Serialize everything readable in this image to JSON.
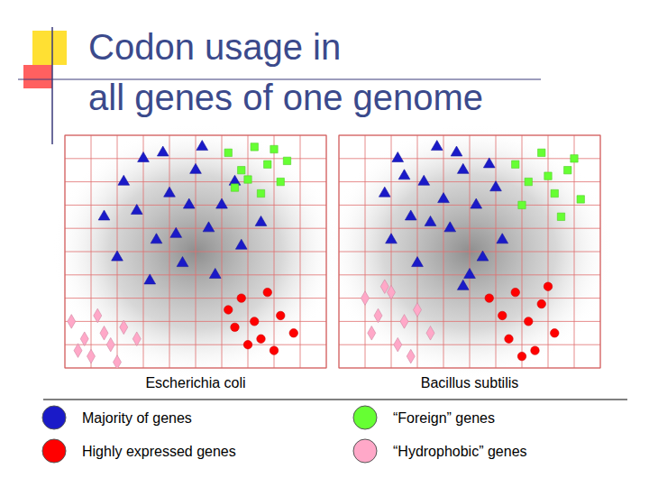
{
  "title": [
    "Codon usage in",
    "all genes of one genome"
  ],
  "chart_data": [
    {
      "type": "scatter",
      "title": "Escherichia coli",
      "xlim": [
        -1,
        1
      ],
      "ylim": [
        -1,
        1
      ],
      "xticks": [
        -1,
        -0.8,
        -0.6,
        -0.4,
        -0.2,
        0,
        0.2,
        0.4,
        0.6,
        0.8,
        1
      ],
      "yticks": [
        -1,
        -0.8,
        -0.6,
        -0.4,
        -0.2,
        0,
        0.2,
        0.4,
        0.6,
        0.8,
        1
      ],
      "grid": true,
      "tick_labels": false,
      "series": [
        {
          "name": "Majority of genes",
          "color": "#1a1ac8",
          "marker": "triangle",
          "x": [
            -0.7,
            -0.55,
            -0.4,
            -0.3,
            -0.2,
            -0.1,
            0,
            0.1,
            0.2,
            0.35,
            0.5,
            -0.6,
            -0.45,
            -0.25,
            -0.05,
            0.15,
            0.3,
            -0.35,
            0.05,
            -0.15
          ],
          "values": [
            0.3,
            0.6,
            0.8,
            0.1,
            0.5,
            -0.1,
            0.7,
            0.2,
            0.4,
            0.05,
            0.25,
            -0.05,
            0.35,
            0.85,
            0.4,
            -0.2,
            0.6,
            -0.25,
            0.9,
            0.15
          ]
        },
        {
          "name": "“Foreign” genes",
          "color": "#66ff33",
          "marker": "square",
          "x": [
            0.25,
            0.35,
            0.45,
            0.55,
            0.65,
            0.3,
            0.5,
            0.6,
            0.4,
            0.7
          ],
          "values": [
            0.85,
            0.7,
            0.9,
            0.75,
            0.6,
            0.55,
            0.5,
            0.88,
            0.62,
            0.78
          ]
        },
        {
          "name": "Highly expressed genes",
          "color": "#ff0000",
          "marker": "circle",
          "x": [
            0.25,
            0.35,
            0.45,
            0.55,
            0.65,
            0.75,
            0.4,
            0.5,
            0.6,
            0.3
          ],
          "values": [
            -0.5,
            -0.4,
            -0.6,
            -0.35,
            -0.55,
            -0.7,
            -0.8,
            -0.75,
            -0.85,
            -0.65
          ]
        },
        {
          "name": "“Hydrophobic” genes",
          "color": "#ffa8c8",
          "marker": "diamond",
          "x": [
            -0.95,
            -0.85,
            -0.75,
            -0.65,
            -0.55,
            -0.9,
            -0.8,
            -0.7,
            -0.6,
            -0.45
          ],
          "values": [
            -0.6,
            -0.75,
            -0.55,
            -0.8,
            -0.65,
            -0.85,
            -0.9,
            -0.7,
            -0.95,
            -0.75
          ]
        }
      ]
    },
    {
      "type": "scatter",
      "title": "Bacillus subtilis",
      "xlim": [
        -1,
        1
      ],
      "ylim": [
        -1,
        1
      ],
      "xticks": [
        -1,
        -0.8,
        -0.6,
        -0.4,
        -0.2,
        0,
        0.2,
        0.4,
        0.6,
        0.8,
        1
      ],
      "yticks": [
        -1,
        -0.8,
        -0.6,
        -0.4,
        -0.2,
        0,
        0.2,
        0.4,
        0.6,
        0.8,
        1
      ],
      "grid": true,
      "tick_labels": false,
      "series": [
        {
          "color": "#1a1ac8",
          "marker": "triangle",
          "x": [
            -0.65,
            -0.55,
            -0.45,
            -0.35,
            -0.25,
            -0.15,
            -0.05,
            0.05,
            0.15,
            0.25,
            -0.6,
            -0.4,
            -0.2,
            0,
            0.2,
            -0.5,
            -0.3,
            -0.1,
            0.1,
            -0.05
          ],
          "values": [
            0.5,
            0.8,
            0.3,
            0.6,
            0.9,
            0.2,
            0.7,
            0.4,
            0.75,
            0.1,
            0.1,
            -0.1,
            0.45,
            -0.2,
            0.55,
            0.65,
            0.25,
            0.85,
            -0.05,
            -0.3
          ]
        },
        {
          "color": "#66ff33",
          "marker": "square",
          "x": [
            0.35,
            0.45,
            0.55,
            0.65,
            0.75,
            0.85,
            0.4,
            0.6,
            0.7,
            0.8
          ],
          "values": [
            0.75,
            0.6,
            0.85,
            0.5,
            0.7,
            0.45,
            0.4,
            0.65,
            0.3,
            0.8
          ]
        },
        {
          "color": "#ff0000",
          "marker": "circle",
          "x": [
            0.15,
            0.25,
            0.35,
            0.45,
            0.55,
            0.65,
            0.3,
            0.5,
            0.4,
            0.6
          ],
          "values": [
            -0.4,
            -0.55,
            -0.35,
            -0.6,
            -0.45,
            -0.7,
            -0.75,
            -0.85,
            -0.9,
            -0.3
          ]
        },
        {
          "color": "#ffa8c8",
          "marker": "diamond",
          "x": [
            -0.8,
            -0.7,
            -0.6,
            -0.5,
            -0.4,
            -0.3,
            -0.75,
            -0.55,
            -0.45,
            -0.65
          ],
          "values": [
            -0.4,
            -0.55,
            -0.35,
            -0.6,
            -0.5,
            -0.7,
            -0.7,
            -0.8,
            -0.9,
            -0.3
          ]
        }
      ]
    }
  ]
}
